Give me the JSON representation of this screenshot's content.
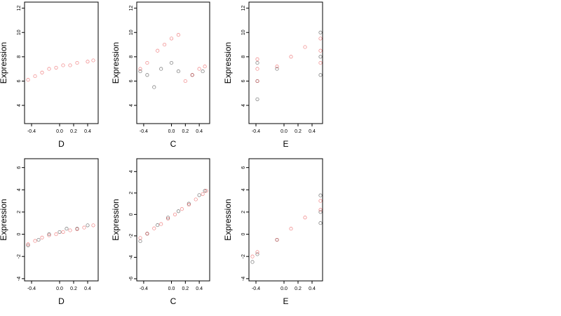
{
  "chart_data": [
    {
      "type": "scatter",
      "xlabel": "D",
      "ylabel": "Expression",
      "xlim": [
        -0.5,
        0.55
      ],
      "ylim": [
        2.5,
        12.5
      ],
      "xticks": [
        -0.4,
        0.0,
        0.2,
        0.4
      ],
      "xtick_labels": [
        "-0.4",
        "0.0",
        "0.2",
        "0.4"
      ],
      "yticks": [
        4,
        6,
        8,
        10,
        12
      ],
      "ytick_labels": [
        "4",
        "6",
        "8",
        "10",
        "12"
      ],
      "grid": false,
      "series": [
        {
          "color": "#000000",
          "marker": "open-circle",
          "description_points": [
            [
              -0.45,
              5.8
            ],
            [
              -0.4,
              6.5
            ],
            [
              -0.3,
              7.0
            ],
            [
              -0.2,
              7.2
            ],
            [
              0.0,
              7.5
            ],
            [
              0.1,
              7.2
            ],
            [
              0.2,
              7.6
            ],
            [
              0.4,
              7.8
            ]
          ]
        },
        {
          "color": "#e41a1c",
          "marker": "open-circle",
          "points": [
            [
              -0.45,
              6.1
            ],
            [
              -0.35,
              6.4
            ],
            [
              -0.25,
              6.7
            ],
            [
              -0.15,
              7.0
            ],
            [
              -0.05,
              7.1
            ],
            [
              0.05,
              7.3
            ],
            [
              0.15,
              7.3
            ],
            [
              0.25,
              7.5
            ],
            [
              0.4,
              7.6
            ],
            [
              0.48,
              7.7
            ]
          ]
        }
      ]
    },
    {
      "type": "scatter",
      "xlabel": "C",
      "ylabel": "Expression",
      "xlim": [
        -0.5,
        0.55
      ],
      "ylim": [
        2.5,
        12.5
      ],
      "xticks": [
        -0.4,
        0.0,
        0.2,
        0.4
      ],
      "xtick_labels": [
        "-0.4",
        "0.0",
        "0.2",
        "0.4"
      ],
      "yticks": [
        4,
        6,
        8,
        10,
        12
      ],
      "ytick_labels": [
        "4",
        "6",
        "8",
        "10",
        "12"
      ],
      "grid": false,
      "series": [
        {
          "color": "#000000",
          "marker": "open-circle",
          "points": [
            [
              -0.45,
              6.8
            ],
            [
              -0.35,
              6.5
            ],
            [
              -0.25,
              5.5
            ],
            [
              -0.15,
              7.0
            ],
            [
              0.0,
              7.5
            ],
            [
              0.1,
              6.8
            ],
            [
              0.3,
              6.5
            ],
            [
              0.45,
              6.8
            ]
          ]
        },
        {
          "color": "#e41a1c",
          "marker": "open-circle",
          "points": [
            [
              -0.45,
              7.0
            ],
            [
              -0.35,
              7.5
            ],
            [
              -0.2,
              8.5
            ],
            [
              -0.1,
              9.0
            ],
            [
              0.0,
              9.5
            ],
            [
              0.1,
              9.8
            ],
            [
              0.2,
              6.0
            ],
            [
              0.3,
              6.5
            ],
            [
              0.4,
              7.0
            ],
            [
              0.48,
              7.2
            ]
          ]
        }
      ]
    },
    {
      "type": "scatter",
      "xlabel": "E",
      "ylabel": "Expression",
      "xlim": [
        -0.5,
        0.55
      ],
      "ylim": [
        2.5,
        12.5
      ],
      "xticks": [
        -0.4,
        0.0,
        0.2,
        0.4
      ],
      "xtick_labels": [
        "-0.4",
        "0.0",
        "0.2",
        "0.4"
      ],
      "yticks": [
        4,
        6,
        8,
        10,
        12
      ],
      "ytick_labels": [
        "4",
        "6",
        "8",
        "10",
        "12"
      ],
      "grid": false,
      "series": [
        {
          "color": "#000000",
          "marker": "open-circle",
          "points": [
            [
              -0.38,
              4.5
            ],
            [
              -0.38,
              6.0
            ],
            [
              -0.38,
              7.5
            ],
            [
              -0.1,
              7.0
            ],
            [
              0.52,
              6.5
            ],
            [
              0.52,
              8.0
            ],
            [
              0.52,
              10.0
            ]
          ]
        },
        {
          "color": "#e41a1c",
          "marker": "open-circle",
          "points": [
            [
              -0.38,
              6.0
            ],
            [
              -0.38,
              7.0
            ],
            [
              -0.38,
              7.8
            ],
            [
              -0.1,
              7.2
            ],
            [
              0.1,
              8.0
            ],
            [
              0.3,
              8.8
            ],
            [
              0.52,
              7.5
            ],
            [
              0.52,
              8.5
            ],
            [
              0.52,
              9.5
            ]
          ]
        }
      ]
    },
    {
      "type": "scatter",
      "xlabel": "D",
      "ylabel": "Expression",
      "xlim": [
        -0.5,
        0.55
      ],
      "ylim": [
        -4.2,
        6.8
      ],
      "xticks": [
        -0.4,
        0.0,
        0.2,
        0.4
      ],
      "xtick_labels": [
        "-0.4",
        "0.0",
        "0.2",
        "0.4"
      ],
      "yticks": [
        -4,
        -2,
        0,
        2,
        4,
        6
      ],
      "ytick_labels": [
        "-4",
        "-2",
        "0",
        "2",
        "4",
        "6"
      ],
      "grid": false,
      "series": [
        {
          "color": "#000000",
          "marker": "open-circle",
          "points": [
            [
              -0.45,
              -1.0
            ],
            [
              -0.3,
              -0.5
            ],
            [
              -0.15,
              0.0
            ],
            [
              0.0,
              0.2
            ],
            [
              0.1,
              0.5
            ],
            [
              0.25,
              0.5
            ],
            [
              0.4,
              0.8
            ]
          ]
        },
        {
          "color": "#e41a1c",
          "marker": "open-circle",
          "points": [
            [
              -0.45,
              -0.9
            ],
            [
              -0.35,
              -0.6
            ],
            [
              -0.25,
              -0.3
            ],
            [
              -0.15,
              -0.1
            ],
            [
              -0.05,
              0.0
            ],
            [
              0.05,
              0.2
            ],
            [
              0.15,
              0.35
            ],
            [
              0.25,
              0.45
            ],
            [
              0.35,
              0.6
            ],
            [
              0.48,
              0.8
            ]
          ]
        }
      ]
    },
    {
      "type": "scatter",
      "xlabel": "C",
      "ylabel": "Expression",
      "xlim": [
        -0.5,
        0.55
      ],
      "ylim": [
        -6.2,
        5.2
      ],
      "xticks": [
        -0.4,
        0.0,
        0.2,
        0.4
      ],
      "xtick_labels": [
        "-0.4",
        "0.0",
        "0.2",
        "0.4"
      ],
      "yticks": [
        -6,
        -4,
        -2,
        0,
        2,
        4
      ],
      "ytick_labels": [
        "-6",
        "-4",
        "-2",
        "0",
        "2",
        "4"
      ],
      "grid": false,
      "series": [
        {
          "color": "#000000",
          "marker": "open-circle",
          "points": [
            [
              -0.45,
              -2.5
            ],
            [
              -0.35,
              -1.8
            ],
            [
              -0.2,
              -1.0
            ],
            [
              -0.05,
              -0.3
            ],
            [
              0.1,
              0.3
            ],
            [
              0.25,
              1.0
            ],
            [
              0.4,
              1.8
            ],
            [
              0.48,
              2.2
            ]
          ]
        },
        {
          "color": "#e41a1c",
          "marker": "open-circle",
          "points": [
            [
              -0.45,
              -2.2
            ],
            [
              -0.35,
              -1.8
            ],
            [
              -0.25,
              -1.3
            ],
            [
              -0.15,
              -0.9
            ],
            [
              -0.05,
              -0.4
            ],
            [
              0.05,
              0.0
            ],
            [
              0.15,
              0.5
            ],
            [
              0.25,
              0.9
            ],
            [
              0.35,
              1.4
            ],
            [
              0.45,
              1.9
            ],
            [
              0.5,
              2.2
            ]
          ]
        }
      ]
    },
    {
      "type": "scatter",
      "xlabel": "E",
      "ylabel": "Expression",
      "xlim": [
        -0.5,
        0.55
      ],
      "ylim": [
        -4.2,
        6.8
      ],
      "xticks": [
        -0.4,
        0.0,
        0.2,
        0.4
      ],
      "xtick_labels": [
        "-0.4",
        "0.0",
        "0.2",
        "0.4"
      ],
      "yticks": [
        -4,
        -2,
        0,
        2,
        4,
        6
      ],
      "ytick_labels": [
        "-4",
        "-2",
        "0",
        "2",
        "4",
        "6"
      ],
      "grid": false,
      "series": [
        {
          "color": "#000000",
          "marker": "open-circle",
          "points": [
            [
              -0.45,
              -2.5
            ],
            [
              -0.38,
              -1.8
            ],
            [
              -0.1,
              -0.5
            ],
            [
              0.52,
              2.0
            ],
            [
              0.52,
              3.5
            ],
            [
              0.52,
              1.0
            ]
          ]
        },
        {
          "color": "#e41a1c",
          "marker": "open-circle",
          "points": [
            [
              -0.45,
              -2.0
            ],
            [
              -0.38,
              -1.6
            ],
            [
              -0.1,
              -0.5
            ],
            [
              0.1,
              0.5
            ],
            [
              0.3,
              1.5
            ],
            [
              0.52,
              2.2
            ],
            [
              0.52,
              3.0
            ]
          ]
        }
      ]
    }
  ]
}
